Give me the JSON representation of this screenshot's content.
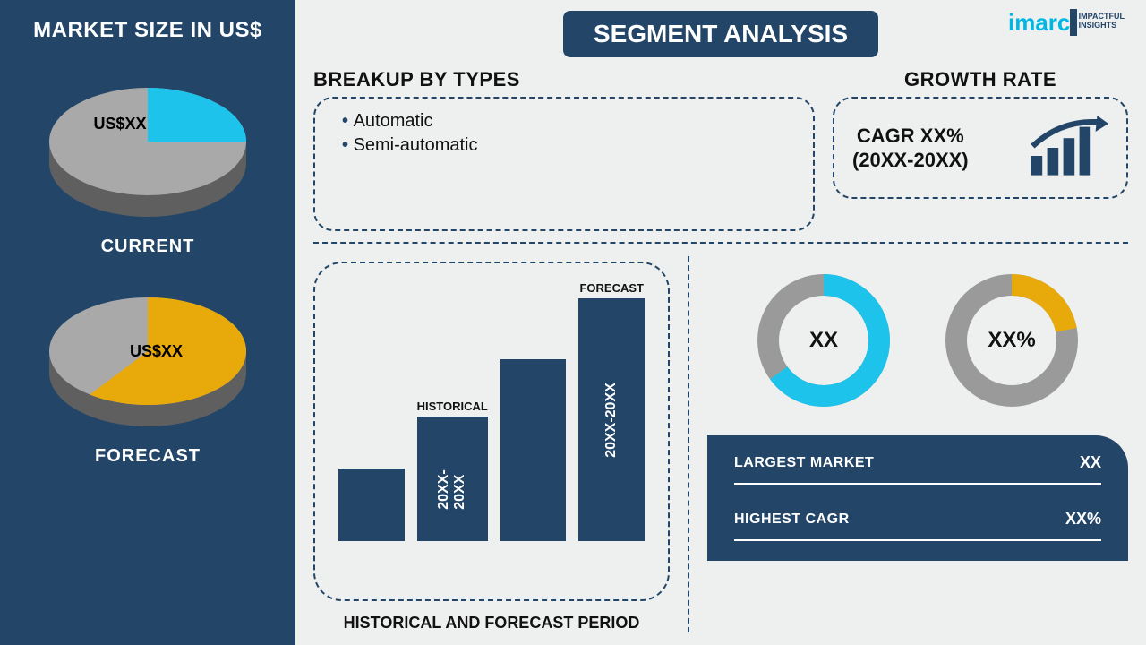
{
  "sidebar": {
    "title": "MARKET SIZE IN US$",
    "pies": [
      {
        "value_label": "US$XX",
        "caption": "CURRENT",
        "slice_pct": 25,
        "slice_color": "#1ec3ec",
        "rest_color": "#a9a9a9",
        "side_color_dark": "#5f5f5f",
        "side_color_slice": "#0e8fb3"
      },
      {
        "value_label": "US$XX",
        "caption": "FORECAST",
        "slice_pct": 60,
        "slice_color": "#e8a90b",
        "rest_color": "#a9a9a9",
        "side_color_dark": "#5f5f5f",
        "side_color_slice": "#b07e04"
      }
    ]
  },
  "header": {
    "title": "SEGMENT ANALYSIS",
    "logo_main": "imarc",
    "logo_tag1": "IMPACTFUL",
    "logo_tag2": "INSIGHTS"
  },
  "types": {
    "title": "BREAKUP BY TYPES",
    "items": [
      "Automatic",
      "Semi-automatic"
    ]
  },
  "growth": {
    "title": "GROWTH RATE",
    "line1": "CAGR XX%",
    "line2": "(20XX-20XX)",
    "icon_color": "#234668"
  },
  "history": {
    "caption": "HISTORICAL AND FORECAST PERIOD",
    "bars": [
      {
        "height_pct": 28,
        "top_label": "",
        "side_label": ""
      },
      {
        "height_pct": 48,
        "top_label": "HISTORICAL",
        "side_label": "20XX-20XX"
      },
      {
        "height_pct": 70,
        "top_label": "",
        "side_label": ""
      },
      {
        "height_pct": 95,
        "top_label": "FORECAST",
        "side_label": "20XX-20XX"
      }
    ],
    "bar_color": "#234668"
  },
  "donuts": [
    {
      "center": "XX",
      "pct": 65,
      "fg": "#1ec3ec",
      "bg": "#9a9a9a",
      "stroke": 24
    },
    {
      "center": "XX%",
      "pct": 22,
      "fg": "#e8a90b",
      "bg": "#9a9a9a",
      "stroke": 24
    }
  ],
  "metrics": {
    "rows": [
      {
        "label": "LARGEST MARKET",
        "value": "XX"
      },
      {
        "label": "HIGHEST CAGR",
        "value": "XX%"
      }
    ],
    "bg": "#234668"
  },
  "colors": {
    "brand": "#234668",
    "panel_bg": "#eeefef"
  }
}
